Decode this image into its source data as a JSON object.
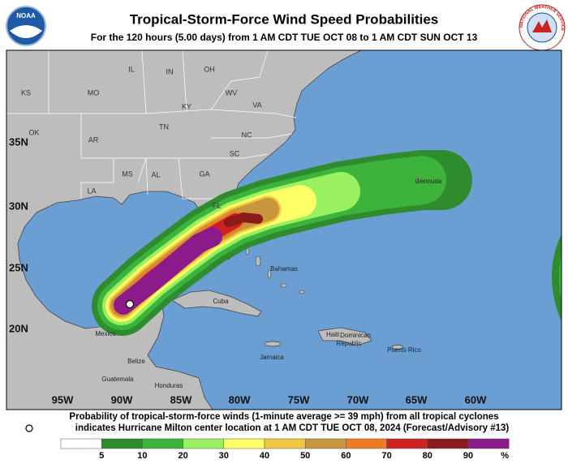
{
  "header": {
    "title": "Tropical-Storm-Force Wind Speed Probabilities",
    "subtitle": "For the 120 hours (5.00 days) from 1 AM CDT TUE OCT 08 to 1 AM CDT SUN OCT 13"
  },
  "logos": {
    "left": "NOAA",
    "right": "NATIONAL WEATHER SERVICE"
  },
  "map": {
    "latitude_labels": [
      "35N",
      "30N",
      "25N",
      "20N"
    ],
    "longitude_labels": [
      "95W",
      "90W",
      "85W",
      "80W",
      "75W",
      "70W",
      "65W",
      "60W"
    ],
    "state_labels": [
      "KS",
      "MO",
      "IL",
      "IN",
      "OH",
      "KY",
      "WV",
      "VA",
      "OK",
      "AR",
      "TN",
      "NC",
      "SC",
      "MS",
      "AL",
      "GA",
      "LA",
      "FL"
    ],
    "place_labels": [
      "Bermuda",
      "Mexico",
      "Belize",
      "Guatemala",
      "Honduras",
      "Cuba",
      "Bahamas",
      "Haiti",
      "Dominican",
      "Republic",
      "Jamaica",
      "Puerto Rico"
    ]
  },
  "footer": {
    "line1": "Probability of tropical-storm-force winds (1-minute average >= 39 mph) from all tropical cyclones",
    "line2": "indicates Hurricane Milton center location at 1 AM CDT TUE OCT 08, 2024 (Forecast/Advisory #13)"
  },
  "legend": {
    "ticks": [
      5,
      10,
      20,
      30,
      40,
      50,
      60,
      70,
      80,
      90
    ],
    "unit": "%",
    "colors": [
      "#ffffff",
      "#2e8b2e",
      "#3cb43c",
      "#99f060",
      "#ffff66",
      "#f0c840",
      "#c8963c",
      "#ee7a22",
      "#cc2222",
      "#8b1a1a",
      "#8b1a8b"
    ]
  }
}
